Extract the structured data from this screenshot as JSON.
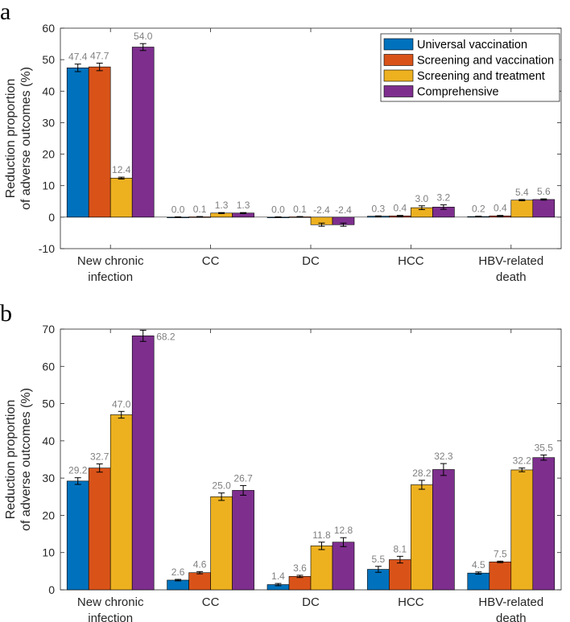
{
  "colors": {
    "Universal vaccination": "#0072BD",
    "Screening and vaccination": "#D95319",
    "Screening and treatment": "#EDB120",
    "Comprehensive": "#7E2F8E"
  },
  "chart_data": [
    {
      "type": "bar",
      "panel_letter": "a",
      "categories": [
        [
          "New chronic",
          "infection"
        ],
        [
          "CC"
        ],
        [
          "DC"
        ],
        [
          "HCC"
        ],
        [
          "HBV-related",
          "death"
        ]
      ],
      "series": [
        {
          "name": "Universal vaccination",
          "values": [
            47.4,
            0.0,
            0.0,
            0.3,
            0.2
          ],
          "labels": [
            "47.4",
            "0.0",
            "0.0",
            "0.3",
            "0.2"
          ],
          "errors": [
            1.2,
            0.1,
            0.1,
            0.1,
            0.1
          ]
        },
        {
          "name": "Screening and vaccination",
          "values": [
            47.7,
            0.1,
            0.1,
            0.4,
            0.4
          ],
          "labels": [
            "47.7",
            "0.1",
            "0.1",
            "0.4",
            "0.4"
          ],
          "errors": [
            1.2,
            0.1,
            0.1,
            0.15,
            0.15
          ]
        },
        {
          "name": "Screening and treatment",
          "values": [
            12.4,
            1.3,
            -2.4,
            3.0,
            5.4
          ],
          "labels": [
            "12.4",
            "1.3",
            "-2.4",
            "3.0",
            "5.4"
          ],
          "errors": [
            0.3,
            0.15,
            0.5,
            0.6,
            0.2
          ]
        },
        {
          "name": "Comprehensive",
          "values": [
            54.0,
            1.3,
            -2.4,
            3.2,
            5.6
          ],
          "labels": [
            "54.0",
            "1.3",
            "-2.4",
            "3.2",
            "5.6"
          ],
          "errors": [
            1.1,
            0.15,
            0.5,
            0.7,
            0.2
          ]
        }
      ],
      "ylabel": [
        "Reduction proportion",
        "of adverse outcomes (%)"
      ],
      "ylim": [
        -10,
        60
      ],
      "yticks": [
        -10,
        0,
        10,
        20,
        30,
        40,
        50,
        60
      ],
      "legend_location": "top-right"
    },
    {
      "type": "bar",
      "panel_letter": "b",
      "categories": [
        [
          "New chronic",
          "infection"
        ],
        [
          "CC"
        ],
        [
          "DC"
        ],
        [
          "HCC"
        ],
        [
          "HBV-related",
          "death"
        ]
      ],
      "series": [
        {
          "name": "Universal vaccination",
          "values": [
            29.2,
            2.6,
            1.4,
            5.5,
            4.5
          ],
          "labels": [
            "29.2",
            "2.6",
            "1.4",
            "5.5",
            "4.5"
          ],
          "errors": [
            0.9,
            0.2,
            0.3,
            0.8,
            0.3
          ]
        },
        {
          "name": "Screening and vaccination",
          "values": [
            32.7,
            4.6,
            3.6,
            8.1,
            7.5
          ],
          "labels": [
            "32.7",
            "4.6",
            "3.6",
            "8.1",
            "7.5"
          ],
          "errors": [
            1.1,
            0.3,
            0.3,
            0.9,
            0.2
          ]
        },
        {
          "name": "Screening and treatment",
          "values": [
            47.0,
            25.0,
            11.8,
            28.2,
            32.2
          ],
          "labels": [
            "47.0",
            "25.0",
            "11.8",
            "28.2",
            "32.2"
          ],
          "errors": [
            0.9,
            1.0,
            1.0,
            1.2,
            0.5
          ]
        },
        {
          "name": "Comprehensive",
          "values": [
            68.2,
            26.7,
            12.8,
            32.3,
            35.5
          ],
          "labels": [
            "68.2",
            "26.7",
            "12.8",
            "32.3",
            "35.5"
          ],
          "errors": [
            1.5,
            1.3,
            1.2,
            1.6,
            0.7
          ]
        }
      ],
      "ylabel": [
        "Reduction proportion",
        "of adverse outcomes (%)"
      ],
      "ylim": [
        0,
        70
      ],
      "yticks": [
        0,
        10,
        20,
        30,
        40,
        50,
        60,
        70
      ]
    }
  ]
}
